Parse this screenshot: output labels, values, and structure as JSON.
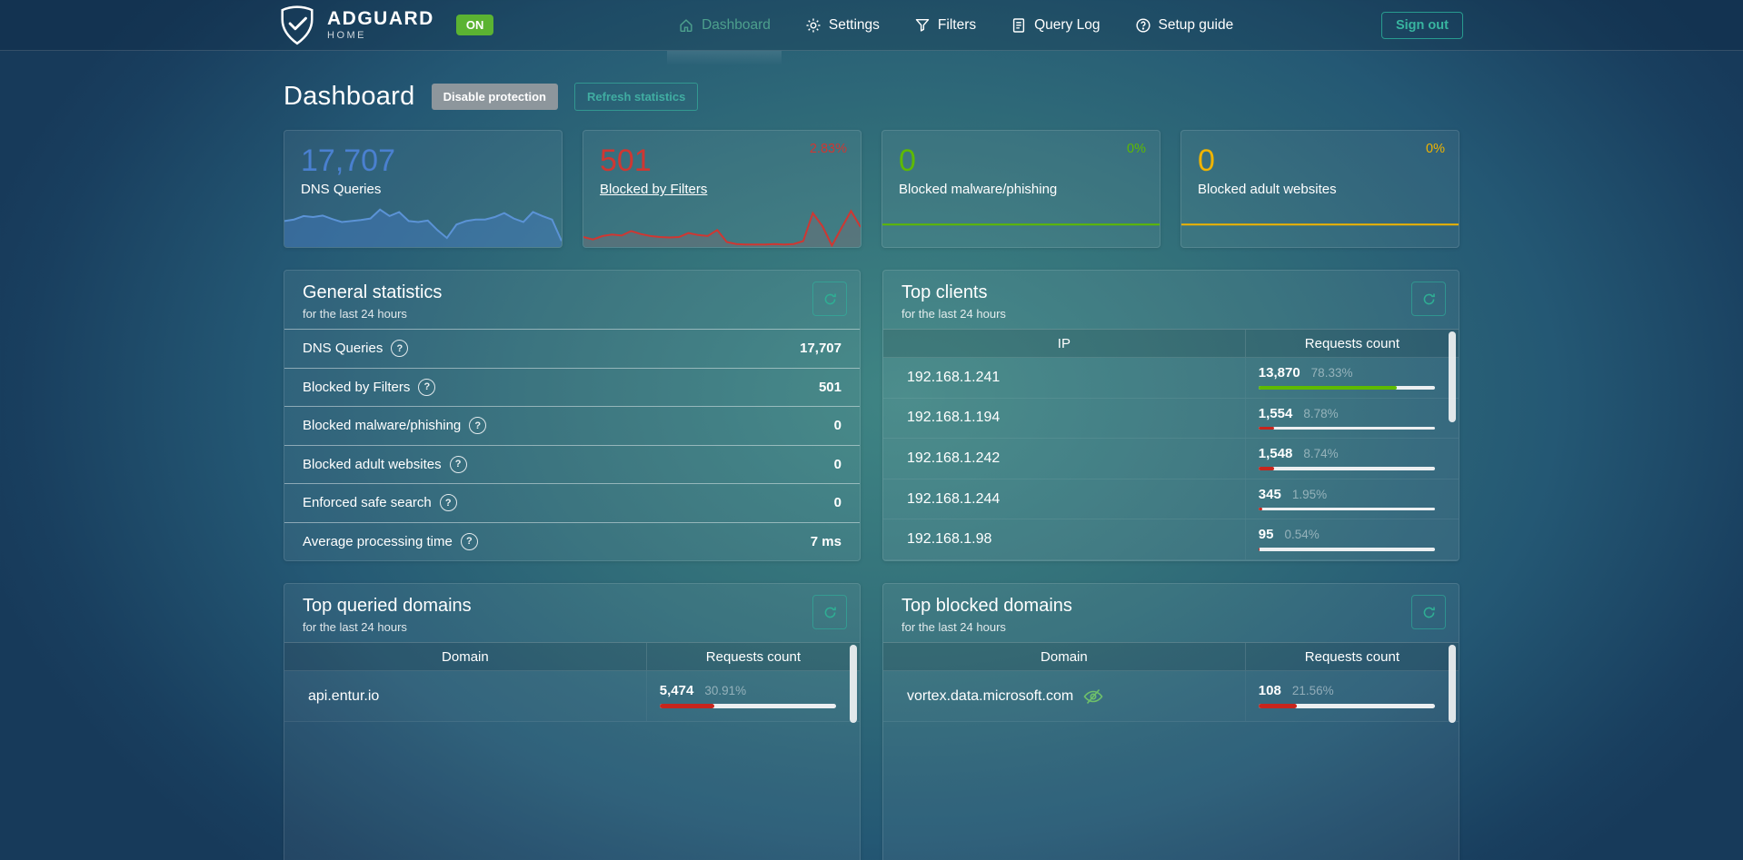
{
  "colors": {
    "accent_teal": "#38b5a0",
    "badge_green": "#5bb332",
    "blue": "#4a80d0",
    "red": "#cf3732",
    "green": "#5eba00",
    "yellow": "#f0b400",
    "bar_green": "#5eba00",
    "bar_red": "#c7251d"
  },
  "navbar": {
    "brand": {
      "name": "ADGUARD",
      "sub": "HOME",
      "status_badge": "ON"
    },
    "items": [
      {
        "label": "Dashboard",
        "icon": "home-icon",
        "active": true
      },
      {
        "label": "Settings",
        "icon": "gear-icon",
        "active": false
      },
      {
        "label": "Filters",
        "icon": "funnel-icon",
        "active": false
      },
      {
        "label": "Query Log",
        "icon": "document-icon",
        "active": false
      },
      {
        "label": "Setup guide",
        "icon": "help-icon",
        "active": false
      }
    ],
    "sign_out_label": "Sign out"
  },
  "page": {
    "title": "Dashboard",
    "disable_protection_label": "Disable protection",
    "refresh_statistics_label": "Refresh statistics"
  },
  "summary_cards": [
    {
      "value": "17,707",
      "label": "DNS Queries",
      "percent": "",
      "is_link": false,
      "value_color": "#4a80d0",
      "percent_color": "#4a80d0",
      "line_color": "#5b93d6",
      "fill_color": "rgba(70,127,207,0.38)",
      "sparkline": [
        52,
        55,
        62,
        60,
        63,
        56,
        50,
        52,
        54,
        57,
        75,
        62,
        70,
        52,
        50,
        53,
        34,
        18,
        45,
        52,
        55,
        55,
        60,
        68,
        57,
        50,
        70,
        62,
        55,
        12
      ]
    },
    {
      "value": "501",
      "label": "Blocked by Filters",
      "percent": "2.83%",
      "is_link": true,
      "value_color": "#cf3732",
      "percent_color": "#cf3732",
      "line_color": "#cf3732",
      "fill_color": "rgba(105,112,118,0.55)",
      "sparkline": [
        20,
        15,
        22,
        25,
        23,
        32,
        26,
        22,
        20,
        19,
        20,
        28,
        24,
        22,
        34,
        10,
        6,
        5,
        5,
        5,
        6,
        5,
        6,
        12,
        68,
        42,
        3,
        38,
        72,
        40
      ]
    },
    {
      "value": "0",
      "label": "Blocked malware/phishing",
      "percent": "0%",
      "is_link": false,
      "value_color": "#5eba00",
      "percent_color": "#5eba00",
      "line_color": "#5eba00",
      "fill_color": "none",
      "sparkline": [
        45,
        45
      ]
    },
    {
      "value": "0",
      "label": "Blocked adult websites",
      "percent": "0%",
      "is_link": false,
      "value_color": "#f0b400",
      "percent_color": "#f0b400",
      "line_color": "#f0b400",
      "fill_color": "none",
      "sparkline": [
        45,
        45
      ]
    }
  ],
  "general_statistics": {
    "title": "General statistics",
    "subtitle": "for the last 24 hours",
    "rows": [
      {
        "label": "DNS Queries",
        "value": "17,707"
      },
      {
        "label": "Blocked by Filters",
        "value": "501"
      },
      {
        "label": "Blocked malware/phishing",
        "value": "0"
      },
      {
        "label": "Blocked adult websites",
        "value": "0"
      },
      {
        "label": "Enforced safe search",
        "value": "0"
      },
      {
        "label": "Average processing time",
        "value": "7 ms"
      }
    ]
  },
  "top_clients": {
    "title": "Top clients",
    "subtitle": "for the last 24 hours",
    "columns": [
      "IP",
      "Requests count"
    ],
    "rows": [
      {
        "name": "192.168.1.241",
        "count": "13,870",
        "percent": "78.33%",
        "bar": 78.33,
        "bar_color": "green",
        "icon": ""
      },
      {
        "name": "192.168.1.194",
        "count": "1,554",
        "percent": "8.78%",
        "bar": 8.78,
        "bar_color": "red",
        "icon": ""
      },
      {
        "name": "192.168.1.242",
        "count": "1,548",
        "percent": "8.74%",
        "bar": 8.74,
        "bar_color": "red",
        "icon": ""
      },
      {
        "name": "192.168.1.244",
        "count": "345",
        "percent": "1.95%",
        "bar": 1.95,
        "bar_color": "red",
        "icon": ""
      },
      {
        "name": "192.168.1.98",
        "count": "95",
        "percent": "0.54%",
        "bar": 0.54,
        "bar_color": "red",
        "icon": ""
      }
    ]
  },
  "top_queried_domains": {
    "title": "Top queried domains",
    "subtitle": "for the last 24 hours",
    "columns": [
      "Domain",
      "Requests count"
    ],
    "rows": [
      {
        "name": "api.entur.io",
        "count": "5,474",
        "percent": "30.91%",
        "bar": 30.91,
        "bar_color": "red",
        "icon": ""
      }
    ]
  },
  "top_blocked_domains": {
    "title": "Top blocked domains",
    "subtitle": "for the last 24 hours",
    "columns": [
      "Domain",
      "Requests count"
    ],
    "rows": [
      {
        "name": "vortex.data.microsoft.com",
        "count": "108",
        "percent": "21.56%",
        "bar": 21.56,
        "bar_color": "red",
        "icon": "eye-off-icon"
      }
    ]
  }
}
